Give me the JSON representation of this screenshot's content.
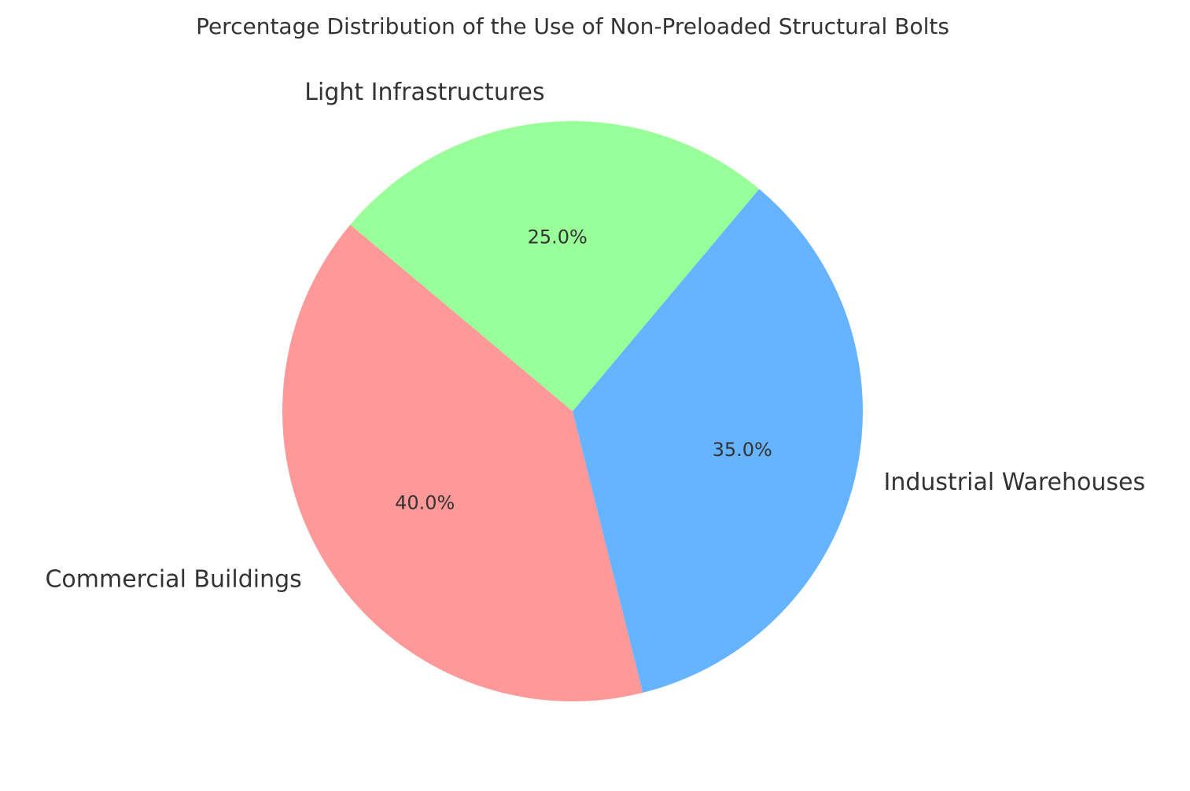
{
  "chart_data": {
    "type": "pie",
    "title": "Percentage Distribution of the Use of Non-Preloaded Structural Bolts",
    "categories": [
      "Commercial Buildings",
      "Industrial Warehouses",
      "Light Infrastructures"
    ],
    "values": [
      40,
      35,
      25
    ],
    "value_labels": [
      "40.0%",
      "35.0%",
      "25.0%"
    ],
    "colors": [
      "#ff9999",
      "#66b3ff",
      "#99ff99"
    ]
  }
}
